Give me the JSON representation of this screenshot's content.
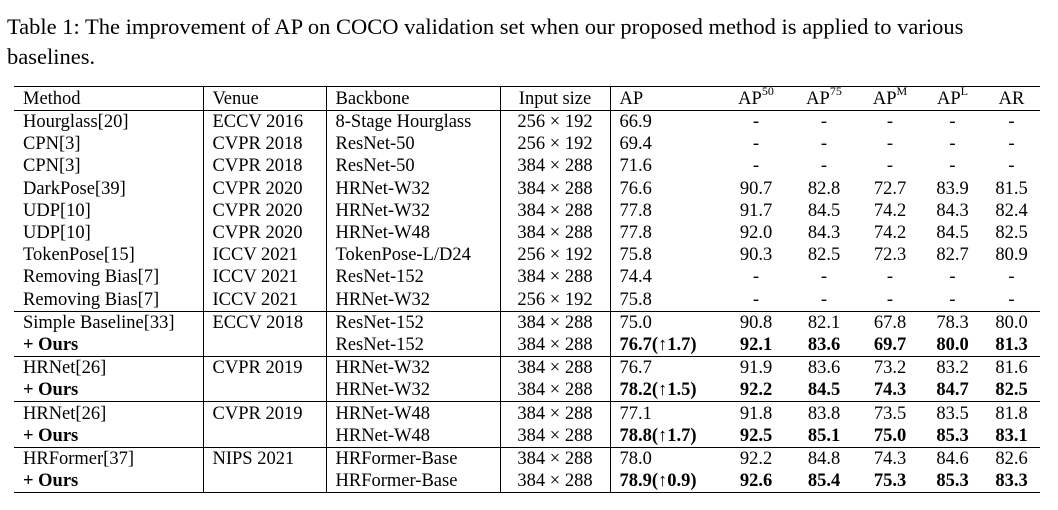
{
  "caption": "Table 1: The improvement of AP on COCO validation set when our proposed method is applied to various baselines.",
  "columns": {
    "method": "Method",
    "venue": "Venue",
    "backbone": "Backbone",
    "input_size": "Input size",
    "ap": "AP",
    "ap50_base": "AP",
    "ap50_sup": "50",
    "ap75_base": "AP",
    "ap75_sup": "75",
    "apm_base": "AP",
    "apm_sup": "M",
    "apl_base": "AP",
    "apl_sup": "L",
    "ar": "AR"
  },
  "rows": [
    {
      "method": "Hourglass[20]",
      "venue": "ECCV 2016",
      "backbone": "8-Stage Hourglass",
      "input": "256 × 192",
      "ap": "66.9",
      "ap50": "-",
      "ap75": "-",
      "apm": "-",
      "apl": "-",
      "ar": "-"
    },
    {
      "method": "CPN[3]",
      "venue": "CVPR 2018",
      "backbone": "ResNet-50",
      "input": "256 × 192",
      "ap": "69.4",
      "ap50": "-",
      "ap75": "-",
      "apm": "-",
      "apl": "-",
      "ar": "-"
    },
    {
      "method": "CPN[3]",
      "venue": "CVPR 2018",
      "backbone": "ResNet-50",
      "input": "384 × 288",
      "ap": "71.6",
      "ap50": "-",
      "ap75": "-",
      "apm": "-",
      "apl": "-",
      "ar": "-"
    },
    {
      "method": "DarkPose[39]",
      "venue": "CVPR 2020",
      "backbone": "HRNet-W32",
      "input": "384 × 288",
      "ap": "76.6",
      "ap50": "90.7",
      "ap75": "82.8",
      "apm": "72.7",
      "apl": "83.9",
      "ar": "81.5"
    },
    {
      "method": "UDP[10]",
      "venue": "CVPR 2020",
      "backbone": "HRNet-W32",
      "input": "384 × 288",
      "ap": "77.8",
      "ap50": "91.7",
      "ap75": "84.5",
      "apm": "74.2",
      "apl": "84.3",
      "ar": "82.4"
    },
    {
      "method": "UDP[10]",
      "venue": "CVPR 2020",
      "backbone": "HRNet-W48",
      "input": "384 × 288",
      "ap": "77.8",
      "ap50": "92.0",
      "ap75": "84.3",
      "apm": "74.2",
      "apl": "84.5",
      "ar": "82.5"
    },
    {
      "method": "TokenPose[15]",
      "venue": "ICCV 2021",
      "backbone": "TokenPose-L/D24",
      "input": "256 × 192",
      "ap": "75.8",
      "ap50": "90.3",
      "ap75": "82.5",
      "apm": "72.3",
      "apl": "82.7",
      "ar": "80.9"
    },
    {
      "method": "Removing Bias[7]",
      "venue": "ICCV 2021",
      "backbone": "ResNet-152",
      "input": "384 × 288",
      "ap": "74.4",
      "ap50": "-",
      "ap75": "-",
      "apm": "-",
      "apl": "-",
      "ar": "-"
    },
    {
      "method": "Removing Bias[7]",
      "venue": "ICCV 2021",
      "backbone": "HRNet-W32",
      "input": "256 × 192",
      "ap": "75.8",
      "ap50": "-",
      "ap75": "-",
      "apm": "-",
      "apl": "-",
      "ar": "-"
    },
    {
      "method": "Simple Baseline[33]",
      "venue": "ECCV 2018",
      "backbone": "ResNet-152",
      "input": "384 × 288",
      "ap": "75.0",
      "ap50": "90.8",
      "ap75": "82.1",
      "apm": "67.8",
      "apl": "78.3",
      "ar": "80.0"
    },
    {
      "method": "+ Ours",
      "venue": "",
      "backbone": "ResNet-152",
      "input": "384 × 288",
      "ap": "76.7(↑1.7)",
      "ap50": "92.1",
      "ap75": "83.6",
      "apm": "69.7",
      "apl": "80.0",
      "ar": "81.3"
    },
    {
      "method": "HRNet[26]",
      "venue": "CVPR 2019",
      "backbone": "HRNet-W32",
      "input": "384 × 288",
      "ap": "76.7",
      "ap50": "91.9",
      "ap75": "83.6",
      "apm": "73.2",
      "apl": "83.2",
      "ar": "81.6"
    },
    {
      "method": "+ Ours",
      "venue": "",
      "backbone": "HRNet-W32",
      "input": "384 × 288",
      "ap": "78.2(↑1.5)",
      "ap50": "92.2",
      "ap75": "84.5",
      "apm": "74.3",
      "apl": "84.7",
      "ar": "82.5"
    },
    {
      "method": "HRNet[26]",
      "venue": "CVPR 2019",
      "backbone": "HRNet-W48",
      "input": "384 × 288",
      "ap": "77.1",
      "ap50": "91.8",
      "ap75": "83.8",
      "apm": "73.5",
      "apl": "83.5",
      "ar": "81.8"
    },
    {
      "method": "+ Ours",
      "venue": "",
      "backbone": "HRNet-W48",
      "input": "384 × 288",
      "ap": "78.8(↑1.7)",
      "ap50": "92.5",
      "ap75": "85.1",
      "apm": "75.0",
      "apl": "85.3",
      "ar": "83.1"
    },
    {
      "method": "HRFormer[37]",
      "venue": "NIPS 2021",
      "backbone": "HRFormer-Base",
      "input": "384 × 288",
      "ap": "78.0",
      "ap50": "92.2",
      "ap75": "84.8",
      "apm": "74.3",
      "apl": "84.6",
      "ar": "82.6"
    },
    {
      "method": "+ Ours",
      "venue": "",
      "backbone": "HRFormer-Base",
      "input": "384 × 288",
      "ap": "78.9(↑0.9)",
      "ap50": "92.6",
      "ap75": "85.4",
      "apm": "75.3",
      "apl": "85.3",
      "ar": "83.3"
    }
  ]
}
